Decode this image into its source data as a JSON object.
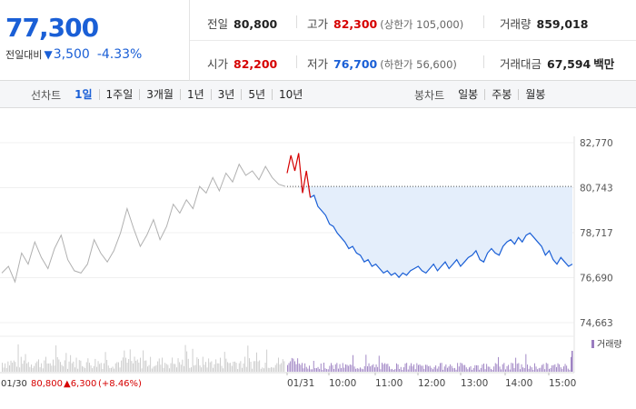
{
  "quote": {
    "price": "77,300",
    "change_label": "전일대비",
    "change_value": "3,500",
    "change_pct": "-4.33%"
  },
  "stats": {
    "prev_label": "전일",
    "prev_value": "80,800",
    "high_label": "고가",
    "high_value": "82,300",
    "upper_limit": "(상한가 105,000)",
    "volume_label": "거래량",
    "volume_value": "859,018",
    "open_label": "시가",
    "open_value": "82,200",
    "low_label": "저가",
    "low_value": "76,700",
    "lower_limit": "(하한가 56,600)",
    "amount_label": "거래대금",
    "amount_value": "67,594",
    "amount_unit": "백만"
  },
  "line_tabs": {
    "label": "선차트",
    "items": [
      "1일",
      "1주일",
      "3개월",
      "1년",
      "3년",
      "5년",
      "10년"
    ],
    "active": 0
  },
  "candle_tabs": {
    "label": "봉차트",
    "items": [
      "일봉",
      "주봉",
      "월봉"
    ]
  },
  "colors": {
    "up": "#d60000",
    "down": "#1a5fd6",
    "fill": "#e4eefb",
    "prev_day_line": "#b0b0b0",
    "volume_today": "#9a7dc0"
  },
  "chart_data": {
    "type": "line",
    "y_ticks": [
      "82,770",
      "80,743",
      "78,717",
      "76,690",
      "74,663"
    ],
    "ylim": [
      74663,
      82770
    ],
    "reference_price": 80800,
    "x_ticks": [
      "01/30",
      "01/31",
      "10:00",
      "11:00",
      "12:00",
      "13:00",
      "14:00",
      "15:00"
    ],
    "prev_day_annotation": {
      "date": "01/30",
      "close": "80,800",
      "change": "▲6,300",
      "pct": "(+8.46%)"
    },
    "volume_legend": "거래량",
    "prev_day_series": [
      76900,
      77200,
      76500,
      77800,
      77300,
      78300,
      77600,
      77100,
      78000,
      78600,
      77500,
      77000,
      76900,
      77300,
      78400,
      77800,
      77400,
      77900,
      78700,
      79800,
      78900,
      78100,
      78600,
      79300,
      78400,
      79000,
      80000,
      79600,
      80200,
      79800,
      80800,
      80500,
      81200,
      80600,
      81400,
      81000,
      81800,
      81300,
      81500,
      81100,
      81700,
      81200,
      80900,
      80800
    ],
    "today_series": [
      81400,
      82200,
      81500,
      82300,
      80500,
      81500,
      80300,
      80400,
      79900,
      79700,
      79500,
      79100,
      79000,
      78700,
      78500,
      78300,
      78000,
      78100,
      77800,
      77700,
      77400,
      77500,
      77200,
      77300,
      77100,
      76900,
      77000,
      76800,
      76900,
      76700,
      76900,
      76800,
      77000,
      77100,
      77200,
      77000,
      76900,
      77100,
      77300,
      77000,
      77200,
      77400,
      77100,
      77300,
      77500,
      77200,
      77400,
      77600,
      77700,
      77900,
      77500,
      77400,
      77800,
      78000,
      77800,
      77700,
      78100,
      78300,
      78400,
      78200,
      78500,
      78300,
      78600,
      78700,
      78500,
      78300,
      78100,
      77700,
      77900,
      77500,
      77300,
      77600,
      77400,
      77200,
      77300
    ]
  }
}
